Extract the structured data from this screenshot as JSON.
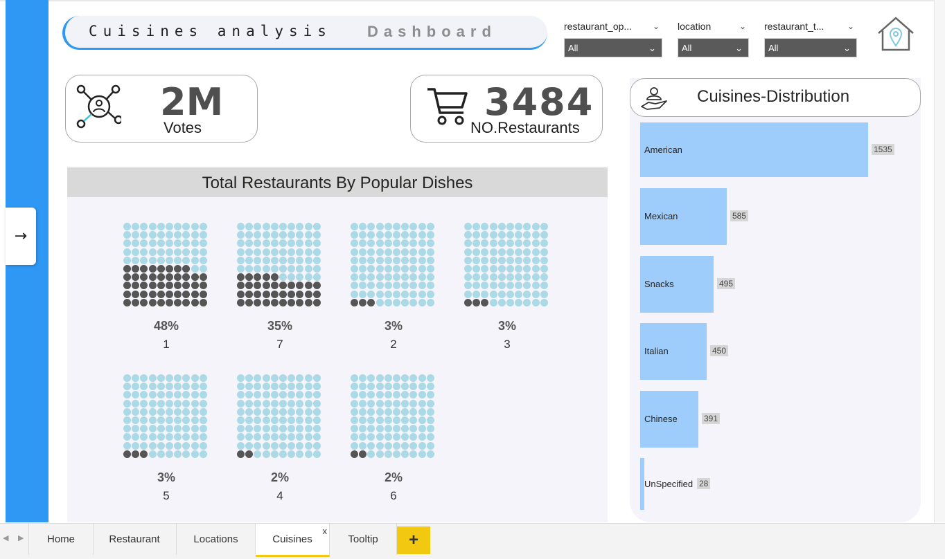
{
  "header": {
    "title_left": "Cuisines analysis",
    "title_right": "Dashboard"
  },
  "filters": [
    {
      "label": "restaurant_op...",
      "value": "All"
    },
    {
      "label": "location",
      "value": "All"
    },
    {
      "label": "restaurant_t...",
      "value": "All"
    }
  ],
  "kpis": {
    "votes": {
      "value": "2M",
      "label": "Votes"
    },
    "restaurants": {
      "value": "3484",
      "label": "NO.Restaurants"
    }
  },
  "waffle": {
    "title": "Total Restaurants By Popular Dishes",
    "items": [
      {
        "pct_label": "48%",
        "category": "1",
        "fraction": 0.48
      },
      {
        "pct_label": "35%",
        "category": "7",
        "fraction": 0.35
      },
      {
        "pct_label": "3%",
        "category": "2",
        "fraction": 0.03
      },
      {
        "pct_label": "3%",
        "category": "3",
        "fraction": 0.03
      },
      {
        "pct_label": "3%",
        "category": "5",
        "fraction": 0.03
      },
      {
        "pct_label": "2%",
        "category": "4",
        "fraction": 0.02
      },
      {
        "pct_label": "2%",
        "category": "6",
        "fraction": 0.02
      }
    ]
  },
  "distribution": {
    "title": "Cuisines-Distribution"
  },
  "chart_data": {
    "type": "bar",
    "orientation": "horizontal",
    "title": "Cuisines-Distribution",
    "categories": [
      "American",
      "Mexican",
      "Snacks",
      "Italian",
      "Chinese",
      "UnSpecified"
    ],
    "values": [
      1535,
      585,
      495,
      450,
      391,
      28
    ],
    "value_labels": [
      "1535",
      "585",
      "495",
      "450",
      "391",
      "28"
    ],
    "xlim": [
      0,
      1535
    ],
    "grid": false,
    "bar_color": "#9fcdfb"
  },
  "tabs": [
    {
      "label": "Home"
    },
    {
      "label": "Restaurant"
    },
    {
      "label": "Locations"
    },
    {
      "label": "Cuisines",
      "active": true,
      "close": "x"
    },
    {
      "label": "Tooltip"
    }
  ],
  "tab_add": "+",
  "expand_arrow": "→",
  "colors": {
    "accent_blue": "#2f98f4",
    "waffle_filled": "#555555",
    "waffle_empty": "#acd9e6",
    "tab_active": "#f2c811"
  },
  "icons": [
    "network-people-icon",
    "shopping-cart-icon",
    "home-location-icon",
    "hand-serving-icon",
    "chevron-down-icon",
    "arrow-right-icon",
    "plus-icon"
  ]
}
